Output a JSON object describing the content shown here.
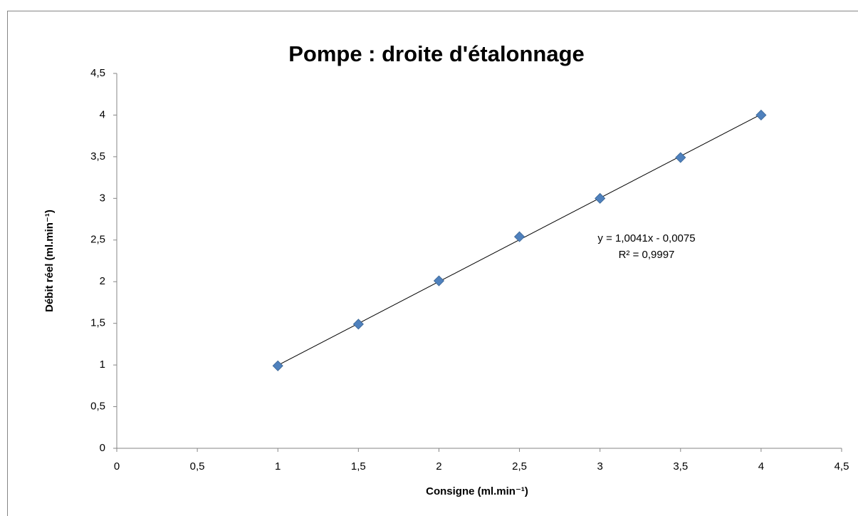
{
  "chart_data": {
    "type": "scatter",
    "title": "Pompe : droite d'étalonnage",
    "x_label": "Consigne (ml.min⁻¹)",
    "y_label": "Débit réel (ml.min⁻¹)",
    "series": [
      {
        "name": "Débit réel",
        "color": "#4f81bd",
        "x": [
          1,
          1.5,
          2,
          2.5,
          3,
          3.5,
          4
        ],
        "values": [
          0.99,
          1.49,
          2.01,
          2.54,
          3.0,
          3.49,
          4.0
        ]
      }
    ],
    "trendline": {
      "slope": 1.0041,
      "intercept": -0.0075,
      "color": "#000000",
      "equation": "y = 1,0041x - 0,0075",
      "r2_label": "R² = 0,9997"
    },
    "xlim": [
      0,
      4.5
    ],
    "xticks": [
      0,
      {
        "value": 0.5,
        "label": "0,5"
      },
      1,
      {
        "value": 1.5,
        "label": "1,5"
      },
      2,
      {
        "value": 2.5,
        "label": "2,5"
      },
      3,
      {
        "value": 3.5,
        "label": "3,5"
      },
      4,
      {
        "value": 4.5,
        "label": "4,5"
      }
    ],
    "ylim": [
      0,
      4.5
    ],
    "yticks": [
      0,
      {
        "value": 0.5,
        "label": "0,5"
      },
      1,
      {
        "value": 1.5,
        "label": "1,5"
      },
      2,
      {
        "value": 2.5,
        "label": "2,5"
      },
      3,
      {
        "value": 3.5,
        "label": "3,5"
      },
      4,
      {
        "value": 4.5,
        "label": "4,5"
      }
    ],
    "grid": false
  }
}
